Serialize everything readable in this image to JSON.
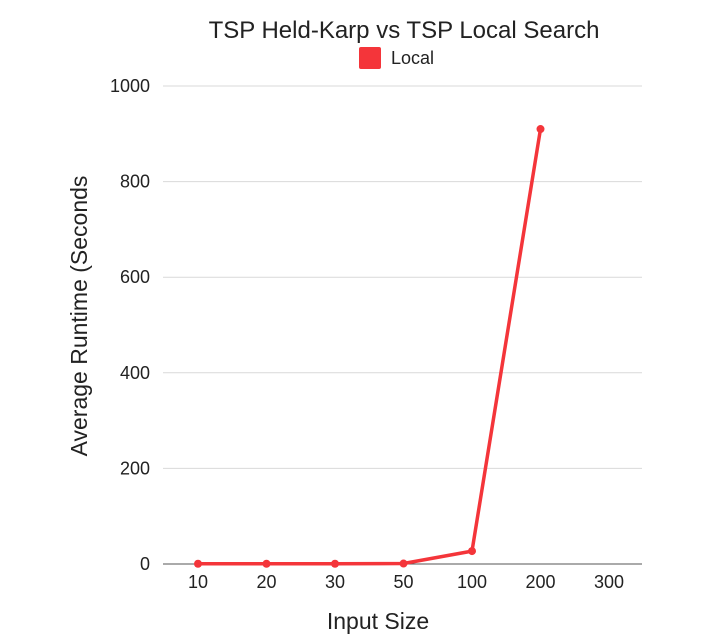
{
  "chart_data": {
    "type": "line",
    "title": "TSP Held-Karp vs TSP Local Search",
    "xlabel": "Input Size",
    "ylabel": "Average Runtime (Seconds",
    "categories": [
      "10",
      "20",
      "30",
      "50",
      "100",
      "200",
      "300"
    ],
    "yticks": [
      0,
      200,
      400,
      600,
      800,
      1000
    ],
    "ylim": [
      0,
      1000
    ],
    "grid": true,
    "legend_position": "top",
    "series": [
      {
        "name": "Local",
        "color": "#f4353a",
        "values": [
          0.5,
          0.5,
          0.5,
          1,
          27,
          910,
          null
        ]
      }
    ]
  }
}
